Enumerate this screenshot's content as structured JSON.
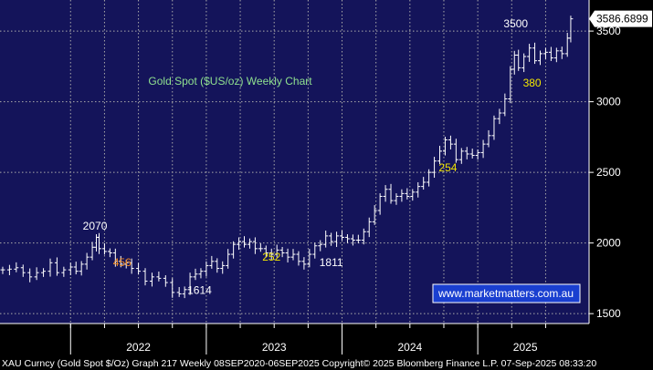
{
  "chart_data": {
    "type": "line",
    "title": "Gold Spot ($US/oz) Weekly Chart",
    "watermark": "www.marketmatters.com.au",
    "last_price_label": "3586.6899",
    "last_price": 3586.69,
    "ylim": [
      1430,
      3720
    ],
    "y_ticks": [
      1500,
      2000,
      2500,
      3000,
      3500
    ],
    "y_tick_labels": [
      "1500",
      "2000",
      "2500",
      "3000",
      "3500"
    ],
    "year_labels": [
      {
        "label": "2022",
        "x": 2022.5
      },
      {
        "label": "2023",
        "x": 2023.5
      },
      {
        "label": "2024",
        "x": 2024.5
      },
      {
        "label": "2025",
        "x": 2025.35
      }
    ],
    "gridlines_x": [
      2022.0,
      2022.25,
      2022.5,
      2022.75,
      2023.0,
      2023.25,
      2023.5,
      2023.75,
      2024.0,
      2024.25,
      2024.5,
      2024.75,
      2025.0,
      2025.25,
      2025.5
    ],
    "year_separators": [
      2022.0,
      2023.0,
      2024.0,
      2025.0
    ],
    "xlim": [
      2021.48,
      2025.82
    ],
    "series": [
      {
        "values": [
          [
            2021.5,
            1810
          ],
          [
            2021.55,
            1815
          ],
          [
            2021.6,
            1825
          ],
          [
            2021.65,
            1790
          ],
          [
            2021.7,
            1760
          ],
          [
            2021.75,
            1790
          ],
          [
            2021.8,
            1800
          ],
          [
            2021.85,
            1860
          ],
          [
            2021.9,
            1790
          ],
          [
            2021.95,
            1810
          ],
          [
            2022.0,
            1830
          ],
          [
            2022.04,
            1800
          ],
          [
            2022.08,
            1850
          ],
          [
            2022.12,
            1900
          ],
          [
            2022.16,
            1970
          ],
          [
            2022.19,
            2040
          ],
          [
            2022.21,
            1960
          ],
          [
            2022.25,
            1940
          ],
          [
            2022.29,
            1930
          ],
          [
            2022.33,
            1870
          ],
          [
            2022.37,
            1850
          ],
          [
            2022.41,
            1860
          ],
          [
            2022.45,
            1820
          ],
          [
            2022.5,
            1800
          ],
          [
            2022.55,
            1730
          ],
          [
            2022.6,
            1760
          ],
          [
            2022.65,
            1750
          ],
          [
            2022.7,
            1720
          ],
          [
            2022.75,
            1650
          ],
          [
            2022.8,
            1640
          ],
          [
            2022.84,
            1670
          ],
          [
            2022.88,
            1760
          ],
          [
            2022.92,
            1780
          ],
          [
            2022.96,
            1800
          ],
          [
            2023.0,
            1840
          ],
          [
            2023.04,
            1870
          ],
          [
            2023.08,
            1820
          ],
          [
            2023.12,
            1840
          ],
          [
            2023.16,
            1920
          ],
          [
            2023.2,
            1990
          ],
          [
            2023.24,
            2010
          ],
          [
            2023.28,
            1990
          ],
          [
            2023.32,
            2010
          ],
          [
            2023.36,
            1960
          ],
          [
            2023.4,
            1960
          ],
          [
            2023.44,
            1930
          ],
          [
            2023.48,
            1920
          ],
          [
            2023.52,
            1950
          ],
          [
            2023.56,
            1930
          ],
          [
            2023.6,
            1900
          ],
          [
            2023.64,
            1920
          ],
          [
            2023.68,
            1870
          ],
          [
            2023.72,
            1850
          ],
          [
            2023.76,
            1920
          ],
          [
            2023.8,
            1980
          ],
          [
            2023.84,
            1990
          ],
          [
            2023.88,
            2050
          ],
          [
            2023.92,
            2010
          ],
          [
            2023.96,
            2050
          ],
          [
            2024.0,
            2040
          ],
          [
            2024.04,
            2030
          ],
          [
            2024.08,
            2020
          ],
          [
            2024.12,
            2020
          ],
          [
            2024.16,
            2080
          ],
          [
            2024.2,
            2150
          ],
          [
            2024.24,
            2230
          ],
          [
            2024.28,
            2330
          ],
          [
            2024.32,
            2380
          ],
          [
            2024.36,
            2300
          ],
          [
            2024.4,
            2330
          ],
          [
            2024.44,
            2350
          ],
          [
            2024.48,
            2330
          ],
          [
            2024.52,
            2360
          ],
          [
            2024.56,
            2400
          ],
          [
            2024.6,
            2430
          ],
          [
            2024.64,
            2500
          ],
          [
            2024.68,
            2580
          ],
          [
            2024.72,
            2650
          ],
          [
            2024.76,
            2730
          ],
          [
            2024.8,
            2700
          ],
          [
            2024.84,
            2590
          ],
          [
            2024.88,
            2650
          ],
          [
            2024.92,
            2630
          ],
          [
            2024.96,
            2620
          ],
          [
            2025.0,
            2640
          ],
          [
            2025.04,
            2700
          ],
          [
            2025.08,
            2760
          ],
          [
            2025.12,
            2880
          ],
          [
            2025.16,
            2920
          ],
          [
            2025.2,
            3020
          ],
          [
            2025.24,
            3230
          ],
          [
            2025.27,
            3330
          ],
          [
            2025.3,
            3240
          ],
          [
            2025.34,
            3320
          ],
          [
            2025.38,
            3380
          ],
          [
            2025.42,
            3290
          ],
          [
            2025.46,
            3340
          ],
          [
            2025.5,
            3350
          ],
          [
            2025.54,
            3310
          ],
          [
            2025.58,
            3360
          ],
          [
            2025.62,
            3340
          ],
          [
            2025.66,
            3450
          ],
          [
            2025.685,
            3586.69
          ]
        ]
      }
    ],
    "annotations": [
      {
        "text": "2070",
        "x": 2022.18,
        "y": 2070,
        "color": "#ffffff"
      },
      {
        "text": "456",
        "x": 2022.38,
        "y": 1810,
        "color": "#f08a24"
      },
      {
        "text": "1614",
        "x": 2022.95,
        "y": 1614,
        "color": "#ffffff"
      },
      {
        "text": "252",
        "x": 2023.48,
        "y": 1850,
        "color": "#f2e600"
      },
      {
        "text": "1811",
        "x": 2023.92,
        "y": 1811,
        "color": "#ffffff"
      },
      {
        "text": "254",
        "x": 2024.78,
        "y": 2480,
        "color": "#f2e600"
      },
      {
        "text": "3500",
        "x": 2025.28,
        "y": 3500,
        "color": "#ffffff"
      },
      {
        "text": "380",
        "x": 2025.4,
        "y": 3080,
        "color": "#f2e600"
      }
    ],
    "colors": {
      "background": "#14145a",
      "grid": "#aaaaaa",
      "price": "#ffffff",
      "title": "#8fe08f",
      "watermark_bg": "#1a3fd0",
      "axis_bg": "#000000"
    }
  },
  "footer": {
    "text": "XAU Curncy (Gold Spot  $/Oz) Graph 217  Weekly 08SEP2020-06SEP2025 Copyright© 2025 Bloomberg Finance L.P. 07-Sep-2025 08:33:20"
  }
}
